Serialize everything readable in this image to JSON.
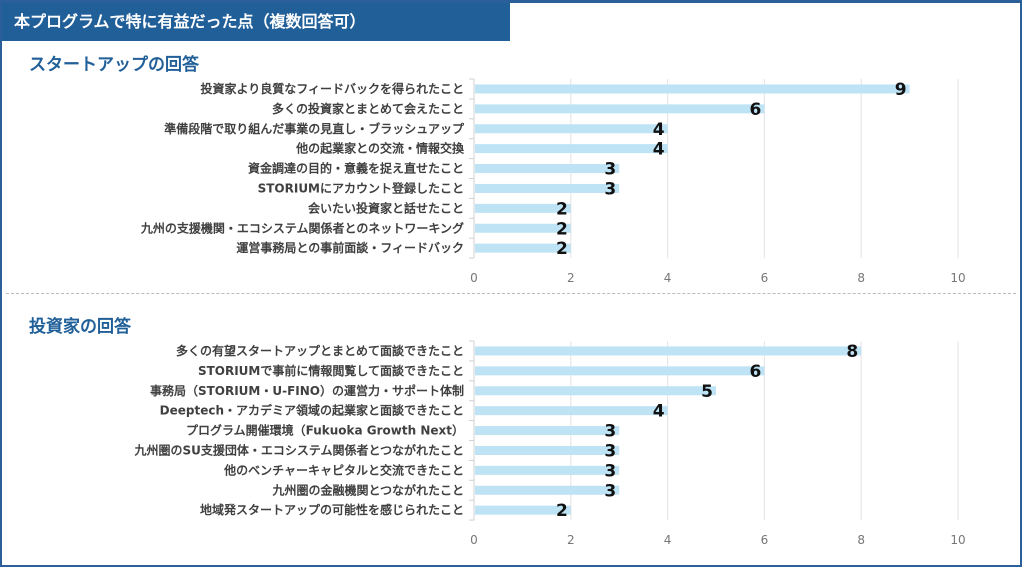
{
  "title": "本プログラムで特に有益だった点（複数回答可）",
  "chart_data": [
    {
      "type": "bar",
      "orientation": "horizontal",
      "title": "スタートアップの回答",
      "categories": [
        "投資家より良質なフィードバックを得られたこと",
        "多くの投資家とまとめて会えたこと",
        "準備段階で取り組んだ事業の見直し・ブラッシュアップ",
        "他の起業家との交流・情報交換",
        "資金調達の目的・意義を捉え直せたこと",
        "STORIUMにアカウント登録したこと",
        "会いたい投資家と話せたこと",
        "九州の支援機関・エコシステム関係者とのネットワーキング",
        "運営事務局との事前面談・フィードバック"
      ],
      "values": [
        9,
        6,
        4,
        4,
        3,
        3,
        2,
        2,
        2
      ],
      "xlim": [
        0,
        10
      ],
      "xticks": [
        0,
        2,
        4,
        6,
        8,
        10
      ],
      "grid": true,
      "bar_color": "#bde3f5"
    },
    {
      "type": "bar",
      "orientation": "horizontal",
      "title": "投資家の回答",
      "categories": [
        "多くの有望スタートアップとまとめて面談できたこと",
        "STORIUMで事前に情報閲覧して面談できたこと",
        "事務局（STORIUM・U-FINO）の運営力・サポート体制",
        "Deeptech・アカデミア領域の起業家と面談できたこと",
        "プログラム開催環境（Fukuoka Growth Next）",
        "九州圏のSU支援団体・エコシステム関係者とつながれたこと",
        "他のベンチャーキャピタルと交流できたこと",
        "九州圏の金融機関とつながれたこと",
        "地域発スタートアップの可能性を感じられたこと"
      ],
      "values": [
        8,
        6,
        5,
        4,
        3,
        3,
        3,
        3,
        2
      ],
      "xlim": [
        0,
        10
      ],
      "xticks": [
        0,
        2,
        4,
        6,
        8,
        10
      ],
      "grid": true,
      "bar_color": "#bde3f5"
    }
  ]
}
